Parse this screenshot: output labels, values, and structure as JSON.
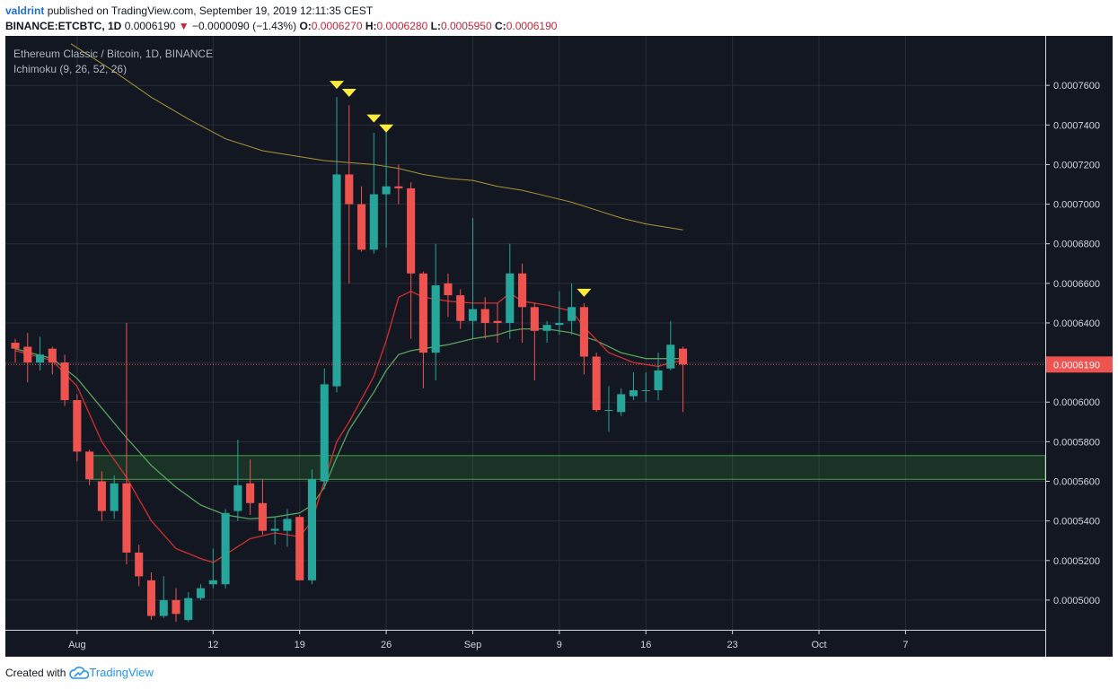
{
  "header": {
    "user": "valdrint",
    "published_text": "published on TradingView.com, September 19, 2019 12:11:35 CEST",
    "symbol": "BINANCE:ETCBTC, 1D",
    "last": "0.0006190",
    "change": "−0.0000090 (−1.43%)",
    "o_label": "O:",
    "o_value": "0.0006270",
    "h_label": "H:",
    "h_value": "0.0006280",
    "l_label": "L:",
    "l_value": "0.0005950",
    "c_label": "C:",
    "c_value": "0.0006190"
  },
  "legend": {
    "title": "Ethereum Classic / Bitcoin, 1D, BINANCE",
    "indicator": "Ichimoku (9, 26, 52, 26)"
  },
  "footer": {
    "created_with": "Created with",
    "brand": "TradingView"
  },
  "colors": {
    "background": "#131722",
    "grid": "#2a2e39",
    "up": "#26a69a",
    "down": "#ef5350",
    "tenkan": "#d32f2f",
    "kijun": "#5aa35e",
    "span": "#a89636",
    "zone": "#2e7d32",
    "marker": "#ffeb3b",
    "price_label": "#ef5350"
  },
  "chart_data": {
    "type": "candlestick",
    "title": "Ethereum Classic / Bitcoin, 1D, BINANCE",
    "ylim": [
      0.000485,
      0.000785
    ],
    "y_ticks": [
      0.0005,
      0.00052,
      0.00054,
      0.00056,
      0.00058,
      0.0006,
      0.00062,
      0.00064,
      0.00066,
      0.00068,
      0.0007,
      0.00072,
      0.00074,
      0.00076
    ],
    "y_tick_labels": [
      "0.0005000",
      "0.0005200",
      "0.0005400",
      "0.0005600",
      "0.0005800",
      "0.0006000",
      "0.0006200",
      "0.0006400",
      "0.0006600",
      "0.0006800",
      "0.0007000",
      "0.0007200",
      "0.0007400",
      "0.0007600"
    ],
    "x_range": [
      -5.8,
      78.3
    ],
    "x_ticks": [
      0,
      11,
      18,
      25,
      32,
      39,
      46,
      53,
      60,
      67
    ],
    "x_tick_labels": [
      "Aug",
      "12",
      "19",
      "26",
      "Sep",
      "9",
      "16",
      "23",
      "Oct",
      "7"
    ],
    "last_price": 0.000619,
    "last_price_label": "0.0006190",
    "candles": [
      {
        "d": -5,
        "o": 0.00063,
        "h": 0.000632,
        "l": 0.00062,
        "c": 0.000627
      },
      {
        "d": -4,
        "o": 0.000628,
        "h": 0.000635,
        "l": 0.00061,
        "c": 0.00062
      },
      {
        "d": -3,
        "o": 0.00062,
        "h": 0.000633,
        "l": 0.000616,
        "c": 0.000624
      },
      {
        "d": -2,
        "o": 0.000627,
        "h": 0.000628,
        "l": 0.000614,
        "c": 0.00062
      },
      {
        "d": -1,
        "o": 0.00062,
        "h": 0.000624,
        "l": 0.000598,
        "c": 0.000601
      },
      {
        "d": 0,
        "o": 0.000601,
        "h": 0.000604,
        "l": 0.00057,
        "c": 0.000575
      },
      {
        "d": 1,
        "o": 0.000575,
        "h": 0.000576,
        "l": 0.000558,
        "c": 0.000561
      },
      {
        "d": 2,
        "o": 0.00056,
        "h": 0.000565,
        "l": 0.00054,
        "c": 0.000545
      },
      {
        "d": 3,
        "o": 0.000545,
        "h": 0.000563,
        "l": 0.000541,
        "c": 0.000559
      },
      {
        "d": 4,
        "o": 0.000559,
        "h": 0.00064,
        "l": 0.000518,
        "c": 0.000524
      },
      {
        "d": 5,
        "o": 0.000524,
        "h": 0.000528,
        "l": 0.000507,
        "c": 0.000512
      },
      {
        "d": 6,
        "o": 0.00051,
        "h": 0.000514,
        "l": 0.00049,
        "c": 0.000492
      },
      {
        "d": 7,
        "o": 0.000492,
        "h": 0.000512,
        "l": 0.000491,
        "c": 0.0005
      },
      {
        "d": 8,
        "o": 0.0005,
        "h": 0.000506,
        "l": 0.000489,
        "c": 0.000493
      },
      {
        "d": 9,
        "o": 0.00049,
        "h": 0.000504,
        "l": 0.000489,
        "c": 0.000501
      },
      {
        "d": 10,
        "o": 0.000501,
        "h": 0.000508,
        "l": 0.0005,
        "c": 0.000506
      },
      {
        "d": 11,
        "o": 0.000508,
        "h": 0.000526,
        "l": 0.000506,
        "c": 0.00051
      },
      {
        "d": 12,
        "o": 0.000508,
        "h": 0.000546,
        "l": 0.000506,
        "c": 0.000544
      },
      {
        "d": 13,
        "o": 0.000545,
        "h": 0.000581,
        "l": 0.00054,
        "c": 0.000558
      },
      {
        "d": 14,
        "o": 0.000559,
        "h": 0.000571,
        "l": 0.000543,
        "c": 0.000549
      },
      {
        "d": 15,
        "o": 0.000549,
        "h": 0.000561,
        "l": 0.000533,
        "c": 0.000535
      },
      {
        "d": 16,
        "o": 0.000535,
        "h": 0.000542,
        "l": 0.000528,
        "c": 0.000536
      },
      {
        "d": 17,
        "o": 0.000535,
        "h": 0.000546,
        "l": 0.000527,
        "c": 0.000541
      },
      {
        "d": 18,
        "o": 0.000542,
        "h": 0.000543,
        "l": 0.00051,
        "c": 0.00051
      },
      {
        "d": 19,
        "o": 0.00051,
        "h": 0.000566,
        "l": 0.000508,
        "c": 0.000561
      },
      {
        "d": 20,
        "o": 0.00056,
        "h": 0.000617,
        "l": 0.000556,
        "c": 0.000609
      },
      {
        "d": 21,
        "o": 0.000608,
        "h": 0.000754,
        "l": 0.000605,
        "c": 0.000715
      },
      {
        "d": 22,
        "o": 0.000715,
        "h": 0.00075,
        "l": 0.00066,
        "c": 0.0007
      },
      {
        "d": 23,
        "o": 0.0007,
        "h": 0.000709,
        "l": 0.000676,
        "c": 0.000677
      },
      {
        "d": 24,
        "o": 0.000677,
        "h": 0.000736,
        "l": 0.000675,
        "c": 0.000705
      },
      {
        "d": 25,
        "o": 0.000705,
        "h": 0.000737,
        "l": 0.000678,
        "c": 0.000709
      },
      {
        "d": 26,
        "o": 0.000709,
        "h": 0.00072,
        "l": 0.0007,
        "c": 0.000708
      },
      {
        "d": 27,
        "o": 0.000708,
        "h": 0.000711,
        "l": 0.000632,
        "c": 0.000665
      },
      {
        "d": 28,
        "o": 0.000665,
        "h": 0.000666,
        "l": 0.000607,
        "c": 0.000625
      },
      {
        "d": 29,
        "o": 0.000625,
        "h": 0.00068,
        "l": 0.000611,
        "c": 0.000659
      },
      {
        "d": 30,
        "o": 0.00066,
        "h": 0.000665,
        "l": 0.000643,
        "c": 0.000654
      },
      {
        "d": 31,
        "o": 0.000654,
        "h": 0.000657,
        "l": 0.000637,
        "c": 0.000641
      },
      {
        "d": 32,
        "o": 0.000641,
        "h": 0.000693,
        "l": 0.000632,
        "c": 0.000647
      },
      {
        "d": 33,
        "o": 0.000647,
        "h": 0.000653,
        "l": 0.000632,
        "c": 0.00064
      },
      {
        "d": 34,
        "o": 0.000641,
        "h": 0.00065,
        "l": 0.00063,
        "c": 0.00064
      },
      {
        "d": 35,
        "o": 0.00064,
        "h": 0.00068,
        "l": 0.000632,
        "c": 0.000665
      },
      {
        "d": 36,
        "o": 0.000665,
        "h": 0.00067,
        "l": 0.00063,
        "c": 0.000648
      },
      {
        "d": 37,
        "o": 0.000648,
        "h": 0.00065,
        "l": 0.000611,
        "c": 0.000636
      },
      {
        "d": 38,
        "o": 0.000636,
        "h": 0.000641,
        "l": 0.00063,
        "c": 0.000639
      },
      {
        "d": 39,
        "o": 0.000639,
        "h": 0.000656,
        "l": 0.000634,
        "c": 0.00064
      },
      {
        "d": 40,
        "o": 0.000641,
        "h": 0.00066,
        "l": 0.000634,
        "c": 0.000648
      },
      {
        "d": 41,
        "o": 0.000648,
        "h": 0.00065,
        "l": 0.000614,
        "c": 0.000623
      },
      {
        "d": 42,
        "o": 0.000623,
        "h": 0.000625,
        "l": 0.000595,
        "c": 0.000596
      },
      {
        "d": 43,
        "o": 0.000596,
        "h": 0.000608,
        "l": 0.000585,
        "c": 0.000596
      },
      {
        "d": 44,
        "o": 0.000595,
        "h": 0.000607,
        "l": 0.000593,
        "c": 0.000604
      },
      {
        "d": 45,
        "o": 0.000603,
        "h": 0.000615,
        "l": 0.000601,
        "c": 0.000606
      },
      {
        "d": 46,
        "o": 0.000606,
        "h": 0.000615,
        "l": 0.0006,
        "c": 0.000606
      },
      {
        "d": 47,
        "o": 0.000606,
        "h": 0.000625,
        "l": 0.000601,
        "c": 0.000616
      },
      {
        "d": 48,
        "o": 0.000617,
        "h": 0.000641,
        "l": 0.000616,
        "c": 0.000629
      },
      {
        "d": 49,
        "o": 0.000627,
        "h": 0.000628,
        "l": 0.000595,
        "c": 0.000619
      }
    ],
    "tenkan": [
      [
        -5,
        0.000626
      ],
      [
        -2,
        0.000621
      ],
      [
        0,
        0.000608
      ],
      [
        2,
        0.00058
      ],
      [
        4,
        0.000562
      ],
      [
        6,
        0.00054
      ],
      [
        8,
        0.000526
      ],
      [
        10,
        0.000521
      ],
      [
        11,
        0.000519
      ],
      [
        12,
        0.000523
      ],
      [
        14,
        0.000531
      ],
      [
        16,
        0.000534
      ],
      [
        18,
        0.000532
      ],
      [
        19,
        0.00054
      ],
      [
        20,
        0.00056
      ],
      [
        21,
        0.00058
      ],
      [
        22,
        0.00059
      ],
      [
        24,
        0.000613
      ],
      [
        25,
        0.000631
      ],
      [
        26,
        0.000653
      ],
      [
        27,
        0.000656
      ],
      [
        28,
        0.000653
      ],
      [
        30,
        0.000651
      ],
      [
        32,
        0.00065
      ],
      [
        34,
        0.00065
      ],
      [
        35,
        0.000655
      ],
      [
        36,
        0.000651
      ],
      [
        38,
        0.000649
      ],
      [
        40,
        0.000646
      ],
      [
        41,
        0.000638
      ],
      [
        43,
        0.000625
      ],
      [
        45,
        0.00062
      ],
      [
        47,
        0.000618
      ],
      [
        48,
        0.00062
      ],
      [
        49,
        0.000621
      ]
    ],
    "kijun": [
      [
        -5,
        0.000627
      ],
      [
        -2,
        0.000622
      ],
      [
        0,
        0.000612
      ],
      [
        2,
        0.000597
      ],
      [
        4,
        0.000582
      ],
      [
        6,
        0.000568
      ],
      [
        8,
        0.000557
      ],
      [
        10,
        0.000548
      ],
      [
        12,
        0.000543
      ],
      [
        14,
        0.000541
      ],
      [
        16,
        0.000542
      ],
      [
        18,
        0.000544
      ],
      [
        19,
        0.000548
      ],
      [
        20,
        0.000557
      ],
      [
        21,
        0.000572
      ],
      [
        22,
        0.000586
      ],
      [
        24,
        0.000605
      ],
      [
        25,
        0.000616
      ],
      [
        26,
        0.000624
      ],
      [
        27,
        0.000626
      ],
      [
        28,
        0.000627
      ],
      [
        30,
        0.000629
      ],
      [
        32,
        0.000632
      ],
      [
        34,
        0.000634
      ],
      [
        35,
        0.000636
      ],
      [
        36,
        0.000637
      ],
      [
        38,
        0.000637
      ],
      [
        40,
        0.000635
      ],
      [
        42,
        0.000631
      ],
      [
        44,
        0.000625
      ],
      [
        46,
        0.000622
      ],
      [
        48,
        0.000622
      ],
      [
        49,
        0.000622
      ]
    ],
    "span_line": [
      [
        -0.5,
        0.000781
      ],
      [
        3,
        0.000767
      ],
      [
        6,
        0.000754
      ],
      [
        9,
        0.000743
      ],
      [
        12,
        0.000733
      ],
      [
        15,
        0.000727
      ],
      [
        18,
        0.000724
      ],
      [
        20,
        0.000722
      ],
      [
        22,
        0.000721
      ],
      [
        24,
        0.00072
      ],
      [
        26,
        0.000718
      ],
      [
        28,
        0.000715
      ],
      [
        30,
        0.000713
      ],
      [
        32,
        0.000712
      ],
      [
        34,
        0.000709
      ],
      [
        36,
        0.000707
      ],
      [
        38,
        0.000704
      ],
      [
        40,
        0.000701
      ],
      [
        42,
        0.000697
      ],
      [
        44,
        0.000693
      ],
      [
        46,
        0.00069
      ],
      [
        48,
        0.000688
      ],
      [
        49,
        0.000687
      ]
    ],
    "support_zone": {
      "from_d": 1,
      "low": 0.000561,
      "high": 0.000573
    },
    "markers": [
      {
        "d": 21,
        "p": 0.00076
      },
      {
        "d": 22,
        "p": 0.000756
      },
      {
        "d": 24,
        "p": 0.000743
      },
      {
        "d": 25,
        "p": 0.000738
      },
      {
        "d": 41,
        "p": 0.000655
      }
    ]
  }
}
